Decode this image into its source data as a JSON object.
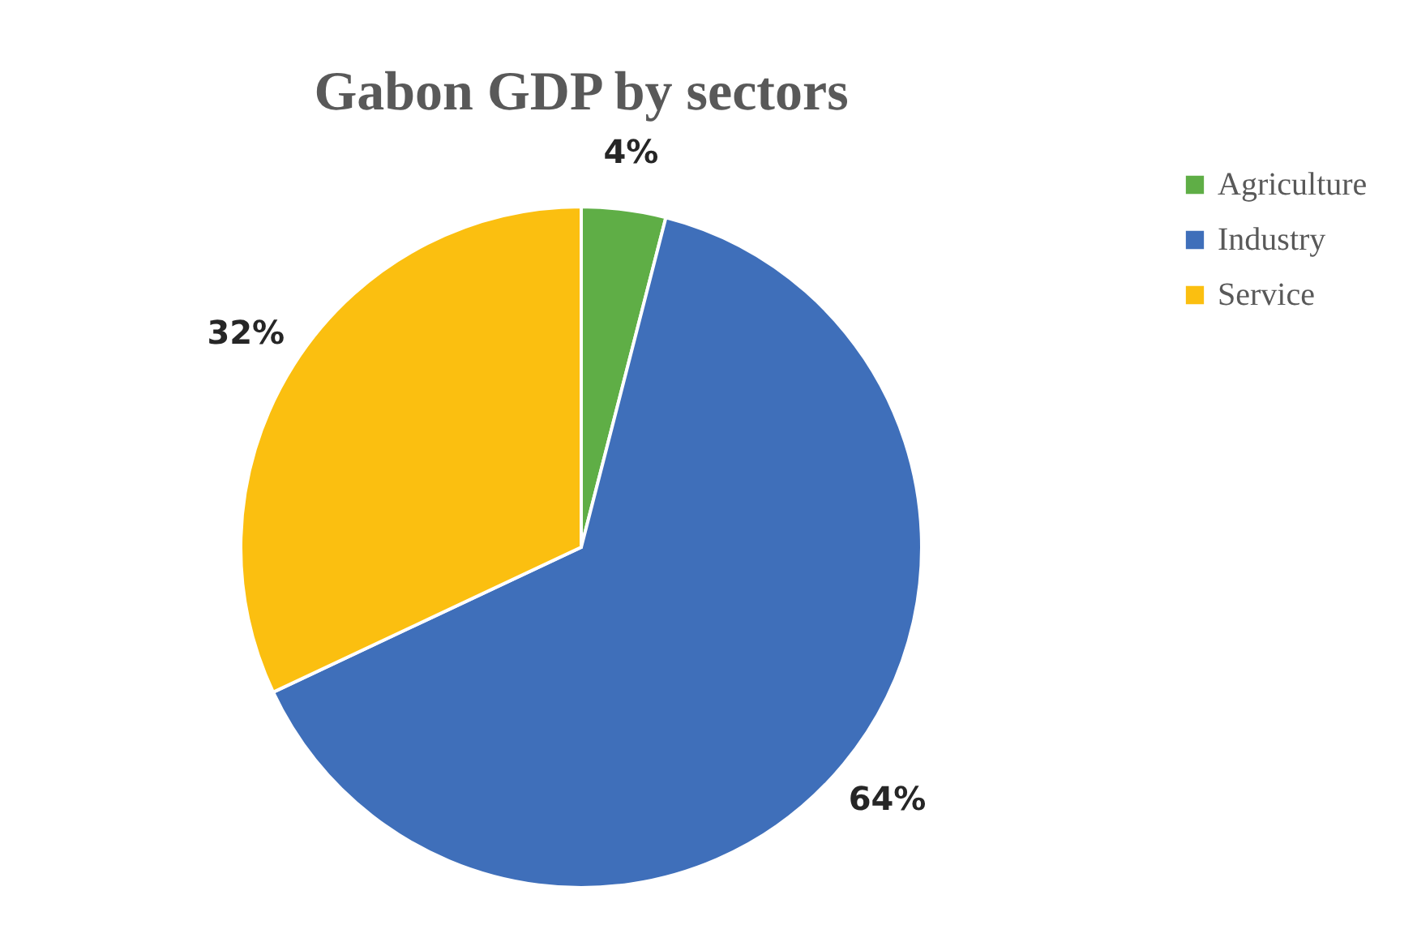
{
  "chart_data": {
    "type": "pie",
    "title": "Gabon GDP by sectors",
    "categories": [
      "Agriculture",
      "Industry",
      "Service"
    ],
    "values": [
      4,
      64,
      32
    ],
    "colors": [
      "#5fae46",
      "#3f6fba",
      "#fbbf10"
    ],
    "value_labels": [
      "4%",
      "64%",
      "32%"
    ],
    "legend": "right"
  }
}
